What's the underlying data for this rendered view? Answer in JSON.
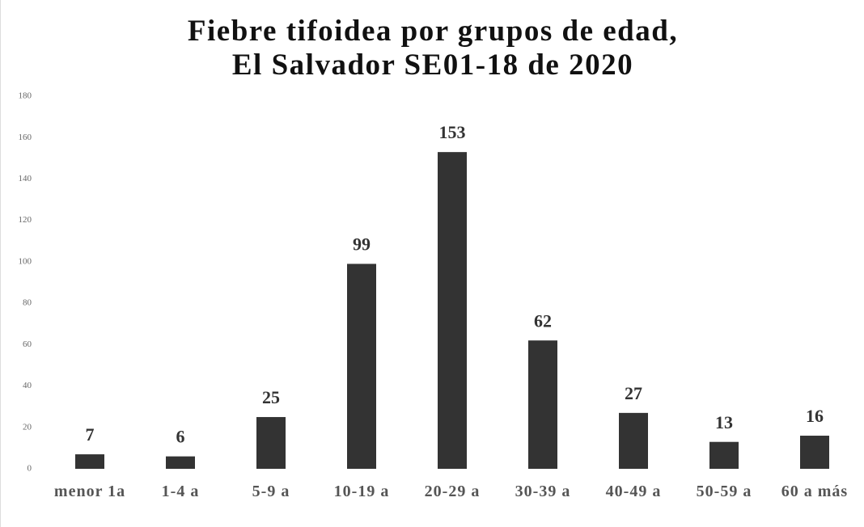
{
  "chart_data": {
    "type": "bar",
    "title": "Fiebre tifoidea por grupos de edad, El Salvador SE01-18 de 2020",
    "categories": [
      "menor 1a",
      "1-4 a",
      "5-9 a",
      "10-19 a",
      "20-29 a",
      "30-39 a",
      "40-49 a",
      "50-59 a",
      "60 a más"
    ],
    "values": [
      7,
      6,
      25,
      99,
      153,
      62,
      27,
      13,
      16
    ],
    "color": "#333333",
    "ylim": [
      0,
      180
    ],
    "yticks": [
      0,
      20,
      40,
      60,
      80,
      100,
      120,
      140,
      160,
      180
    ],
    "grid": false
  }
}
